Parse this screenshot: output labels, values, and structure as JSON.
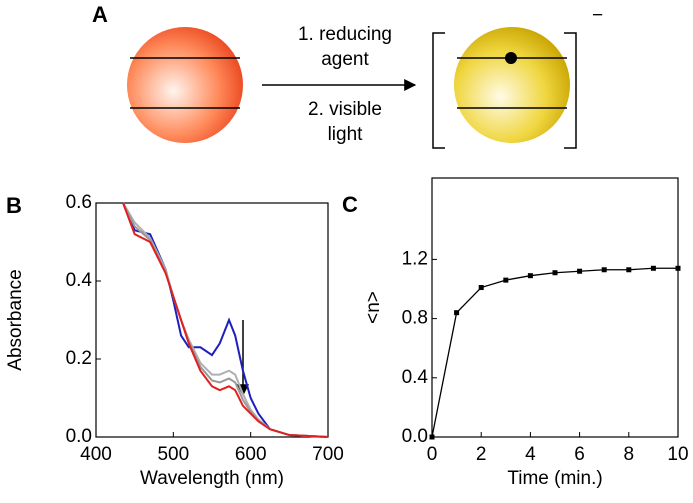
{
  "diagram": {
    "label": "A",
    "step1": [
      "1. reducing",
      "agent"
    ],
    "step2": [
      "2. visible",
      "light"
    ],
    "charge": "−"
  },
  "chart_data": [
    {
      "type": "line",
      "label": "B",
      "xlabel": "Wavelength (nm)",
      "ylabel": "Absorbance",
      "x": [
        435,
        450,
        470,
        490,
        500,
        510,
        520,
        535,
        550,
        560,
        572,
        580,
        590,
        600,
        610,
        625,
        650,
        700
      ],
      "series": [
        {
          "color": "#1f1fbf",
          "values": [
            0.6,
            0.53,
            0.52,
            0.43,
            0.35,
            0.26,
            0.23,
            0.23,
            0.21,
            0.24,
            0.3,
            0.26,
            0.17,
            0.1,
            0.06,
            0.02,
            0.005,
            0
          ]
        },
        {
          "color": "#b0b0b0",
          "values": [
            0.6,
            0.55,
            0.51,
            0.43,
            0.36,
            0.3,
            0.25,
            0.19,
            0.16,
            0.16,
            0.17,
            0.16,
            0.11,
            0.07,
            0.045,
            0.02,
            0.005,
            0
          ]
        },
        {
          "color": "#999999",
          "values": [
            0.6,
            0.54,
            0.505,
            0.425,
            0.36,
            0.3,
            0.245,
            0.18,
            0.145,
            0.14,
            0.15,
            0.14,
            0.095,
            0.065,
            0.042,
            0.02,
            0.005,
            0
          ]
        },
        {
          "color": "#e02020",
          "values": [
            0.6,
            0.52,
            0.5,
            0.42,
            0.36,
            0.3,
            0.24,
            0.17,
            0.13,
            0.12,
            0.13,
            0.12,
            0.08,
            0.06,
            0.04,
            0.02,
            0.005,
            0
          ]
        }
      ],
      "xlim": [
        400,
        700
      ],
      "xticks": [
        400,
        500,
        600,
        700
      ],
      "ylim": [
        0,
        0.6
      ],
      "yticks": [
        {
          "value": 0,
          "label": "0.0"
        },
        0.2,
        0.4,
        0.6
      ]
    },
    {
      "type": "scatter",
      "label": "C",
      "xlabel": "Time (min.)",
      "ylabel": "<n>",
      "line": true,
      "color": "#000000",
      "x": [
        0,
        1,
        2,
        3,
        4,
        5,
        6,
        7,
        8,
        9,
        10
      ],
      "values": [
        0,
        0.84,
        1.01,
        1.06,
        1.09,
        1.11,
        1.12,
        1.13,
        1.13,
        1.14,
        1.14
      ],
      "xlim": [
        0,
        10
      ],
      "xticks": [
        0,
        2,
        4,
        6,
        8,
        10
      ],
      "ylim": [
        0,
        1.75
      ],
      "yticks": [
        {
          "value": 0,
          "label": "0.0"
        },
        0.4,
        0.8,
        1.2
      ]
    }
  ]
}
